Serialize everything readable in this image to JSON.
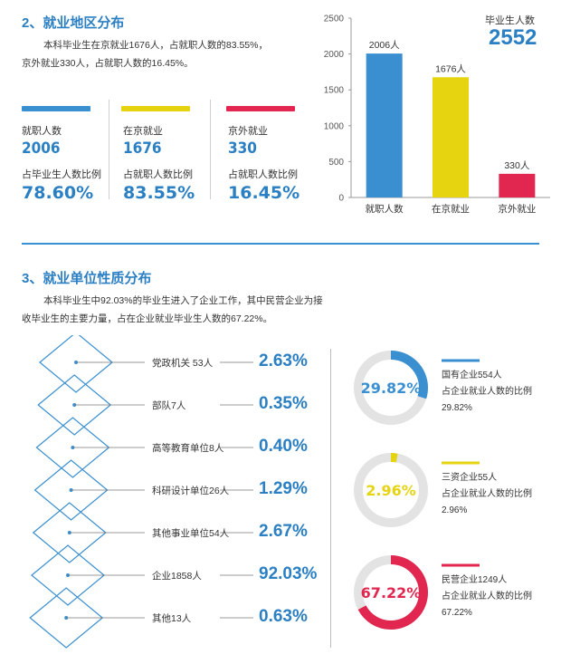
{
  "section2": {
    "title": "2、就业地区分布",
    "para_line1": "本科毕业生在京就业1676人，占就职人数的83.55%，",
    "para_line2": "京外就业330人，占就职人数的16.45%。",
    "stats": [
      {
        "label1": "就职人数",
        "value": "2006",
        "label2": "占毕业生人数比例",
        "pct": "78.60%",
        "color": "#3a8fd0"
      },
      {
        "label1": "在京就业",
        "value": "1676",
        "label2": "占就职人数比例",
        "pct": "83.55%",
        "color": "#e6d410"
      },
      {
        "label1": "京外就业",
        "value": "330",
        "label2": "占就职人数比例",
        "pct": "16.45%",
        "color": "#e1264f"
      }
    ]
  },
  "chart_data": {
    "type": "bar",
    "categories": [
      "就职人数",
      "在京就业",
      "京外就业"
    ],
    "values": [
      2006,
      1676,
      330
    ],
    "value_labels": [
      "2006人",
      "1676人",
      "330人"
    ],
    "colors": [
      "#3a8fd0",
      "#e6d410",
      "#e1264f"
    ],
    "yticks": [
      0,
      500,
      1000,
      1500,
      2000,
      2500
    ],
    "ylim": [
      0,
      2500
    ],
    "grid": false
  },
  "graduates": {
    "label": "毕业生人数",
    "value": "2552"
  },
  "section3": {
    "title": "3、就业单位性质分布",
    "para_line1": "本科毕业生中92.03%的毕业生进入了企业工作，其中民营企业为接",
    "para_line2": "收毕业生的主要力量，占在企业就业毕业生人数的67.22%。",
    "rows": [
      {
        "label": "党政机关 53人",
        "pct": "2.63%"
      },
      {
        "label": "部队7人",
        "pct": "0.35%"
      },
      {
        "label": "高等教育单位8人",
        "pct": "0.40%"
      },
      {
        "label": "科研设计单位26人",
        "pct": "1.29%"
      },
      {
        "label": "其他事业单位54人",
        "pct": "2.67%"
      },
      {
        "label": "企业1858人",
        "pct": "92.03%"
      },
      {
        "label": "其他13人",
        "pct": "0.63%"
      }
    ],
    "donuts": [
      {
        "pct_text": "29.82%",
        "value": 29.82,
        "color": "#3a8fd0",
        "line1": "国有企业554人",
        "line2": "占企业就业人数的比例",
        "line3": "29.82%"
      },
      {
        "pct_text": "2.96%",
        "value": 2.96,
        "color": "#e6d410",
        "line1": "三资企业55人",
        "line2": "占企业就业人数的比例",
        "line3": "2.96%"
      },
      {
        "pct_text": "67.22%",
        "value": 67.22,
        "color": "#e1264f",
        "line1": "民营企业1249人",
        "line2": "占企业就业人数的比例",
        "line3": "67.22%"
      }
    ]
  }
}
